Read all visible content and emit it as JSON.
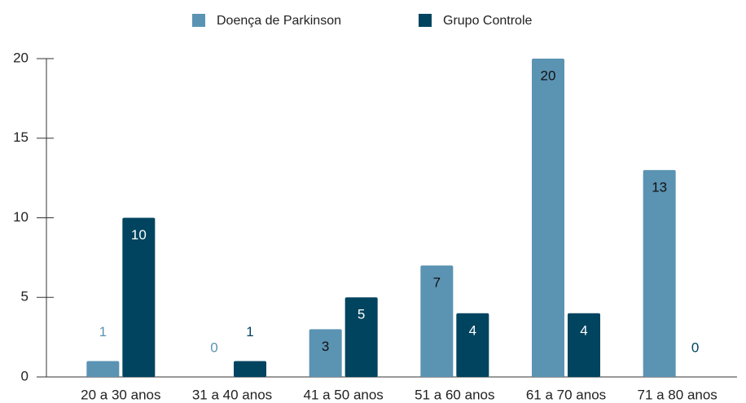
{
  "chart_data": {
    "type": "bar",
    "categories": [
      "20 a 30 anos",
      "31 a 40 anos",
      "41 a 50 anos",
      "51 a 60 anos",
      "61 a 70 anos",
      "71 a 80 anos"
    ],
    "series": [
      {
        "name": "Doença de Parkinson",
        "color": "#5b93b3",
        "values": [
          1,
          0,
          3,
          7,
          20,
          13
        ]
      },
      {
        "name": "Grupo Controle",
        "color": "#00445f",
        "values": [
          10,
          1,
          5,
          4,
          4,
          0
        ]
      }
    ],
    "ylim": [
      0,
      20
    ],
    "yticks": [
      0,
      5,
      10,
      15,
      20
    ],
    "grid": false,
    "legend": "top"
  }
}
